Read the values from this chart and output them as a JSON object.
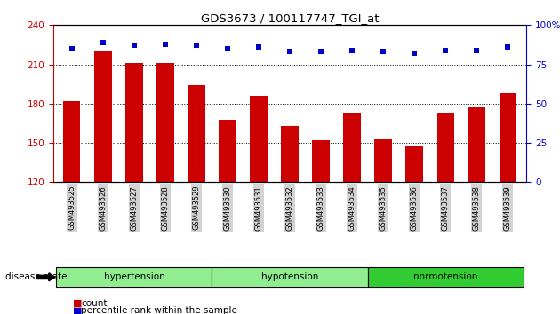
{
  "title": "GDS3673 / 100117747_TGI_at",
  "samples": [
    "GSM493525",
    "GSM493526",
    "GSM493527",
    "GSM493528",
    "GSM493529",
    "GSM493530",
    "GSM493531",
    "GSM493532",
    "GSM493533",
    "GSM493534",
    "GSM493535",
    "GSM493536",
    "GSM493537",
    "GSM493538",
    "GSM493539"
  ],
  "bar_values": [
    182,
    220,
    211,
    211,
    194,
    168,
    186,
    163,
    152,
    173,
    153,
    147,
    173,
    177,
    188
  ],
  "percentile_values": [
    85,
    89,
    87,
    88,
    87,
    85,
    86,
    83,
    83,
    84,
    83,
    82,
    84,
    84,
    86
  ],
  "bar_color": "#cc0000",
  "dot_color": "#0000cc",
  "ylim_left": [
    120,
    240
  ],
  "yticks_left": [
    120,
    150,
    180,
    210,
    240
  ],
  "ylim_right": [
    0,
    100
  ],
  "yticks_right": [
    0,
    25,
    50,
    75,
    100
  ],
  "grid_values": [
    150,
    180,
    210
  ],
  "groups": [
    {
      "label": "hypertension",
      "indices": [
        0,
        1,
        2,
        3,
        4
      ],
      "color": "#90EE90"
    },
    {
      "label": "hypotension",
      "indices": [
        5,
        6,
        7,
        8,
        9
      ],
      "color": "#90EE90"
    },
    {
      "label": "normotension",
      "indices": [
        10,
        11,
        12,
        13,
        14
      ],
      "color": "#32CD32"
    }
  ],
  "disease_state_label": "disease state",
  "legend_count_label": "count",
  "legend_percentile_label": "percentile rank within the sample",
  "bar_width": 0.55
}
